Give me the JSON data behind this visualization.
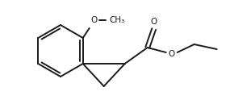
{
  "bg_color": "#ffffff",
  "line_color": "#1a1a1a",
  "line_width": 1.4,
  "figsize": [
    2.9,
    1.29
  ],
  "dpi": 100,
  "font_size": 7.5,
  "xlim": [
    0,
    290
  ],
  "ylim": [
    0,
    129
  ]
}
